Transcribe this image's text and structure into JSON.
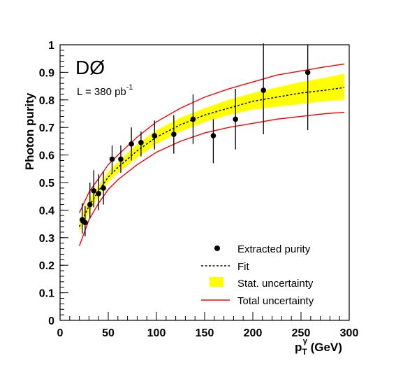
{
  "chart_data": {
    "type": "scatter",
    "experiment_label": "DØ",
    "luminosity_label": {
      "main": "L = 380 pb",
      "sup": "-1"
    },
    "xlabel": {
      "main": "p",
      "sub": "T",
      "sup": "γ",
      "suffix": " (GeV)"
    },
    "ylabel": "Photon purity",
    "xlim": [
      0,
      300
    ],
    "ylim": [
      0,
      1
    ],
    "x_ticks": [
      0,
      50,
      100,
      150,
      200,
      250,
      300
    ],
    "y_ticks": [
      0,
      0.1,
      0.2,
      0.3,
      0.4,
      0.5,
      0.6,
      0.7,
      0.8,
      0.9,
      1
    ],
    "y_tick_labels": [
      "0",
      "0.1",
      "0.2",
      "0.3",
      "0.4",
      "0.5",
      "0.6",
      "0.7",
      "0.8",
      "0.9",
      "1"
    ],
    "x_tick_labels": [
      "0",
      "50",
      "100",
      "150",
      "200",
      "250",
      "300"
    ],
    "series": [
      {
        "name": "Extracted purity",
        "kind": "points",
        "color": "#000000",
        "x": [
          23,
          26,
          31,
          35,
          40,
          45,
          54,
          63,
          74,
          84,
          98,
          118,
          138,
          159,
          182,
          211,
          257
        ],
        "y": [
          0.365,
          0.355,
          0.42,
          0.47,
          0.46,
          0.48,
          0.585,
          0.585,
          0.64,
          0.645,
          0.67,
          0.675,
          0.73,
          0.67,
          0.73,
          0.835,
          0.9
        ],
        "err_low": [
          0.05,
          0.05,
          0.05,
          0.06,
          0.06,
          0.06,
          0.05,
          0.05,
          0.06,
          0.05,
          0.05,
          0.07,
          0.09,
          0.1,
          0.11,
          0.16,
          0.21
        ],
        "err_high": [
          0.06,
          0.06,
          0.08,
          0.075,
          0.07,
          0.06,
          0.05,
          0.05,
          0.06,
          0.04,
          0.055,
          0.07,
          0.09,
          0.06,
          0.11,
          0.17,
          0.1
        ]
      },
      {
        "name": "Fit",
        "kind": "dashed-line",
        "color": "#000000",
        "x": [
          20,
          30,
          40,
          50,
          60,
          80,
          100,
          125,
          150,
          175,
          200,
          225,
          250,
          275,
          295
        ],
        "y": [
          0.34,
          0.415,
          0.47,
          0.52,
          0.555,
          0.615,
          0.665,
          0.71,
          0.745,
          0.77,
          0.795,
          0.81,
          0.825,
          0.835,
          0.845
        ]
      },
      {
        "name": "Stat. uncertainty",
        "kind": "band",
        "color": "#ffff00",
        "x": [
          20,
          30,
          40,
          50,
          60,
          80,
          100,
          125,
          150,
          175,
          200,
          225,
          250,
          275,
          295
        ],
        "low": [
          0.32,
          0.39,
          0.45,
          0.5,
          0.535,
          0.59,
          0.64,
          0.685,
          0.72,
          0.745,
          0.765,
          0.775,
          0.785,
          0.795,
          0.8
        ],
        "high": [
          0.36,
          0.44,
          0.49,
          0.54,
          0.575,
          0.64,
          0.69,
          0.735,
          0.77,
          0.8,
          0.825,
          0.845,
          0.865,
          0.88,
          0.895
        ]
      },
      {
        "name": "Total uncertainty",
        "kind": "band-lines",
        "color": "#ff0000",
        "x": [
          20,
          30,
          40,
          50,
          60,
          80,
          100,
          125,
          150,
          175,
          200,
          225,
          250,
          275,
          295
        ],
        "low": [
          0.27,
          0.365,
          0.425,
          0.475,
          0.51,
          0.565,
          0.61,
          0.65,
          0.68,
          0.7,
          0.715,
          0.73,
          0.74,
          0.75,
          0.755
        ],
        "high": [
          0.39,
          0.465,
          0.515,
          0.565,
          0.6,
          0.665,
          0.72,
          0.77,
          0.81,
          0.84,
          0.865,
          0.89,
          0.905,
          0.92,
          0.93
        ]
      }
    ],
    "legend": {
      "placement": "bottom-right",
      "entries": [
        "Extracted purity",
        "Fit",
        "Stat. uncertainty",
        "Total uncertainty"
      ]
    }
  }
}
